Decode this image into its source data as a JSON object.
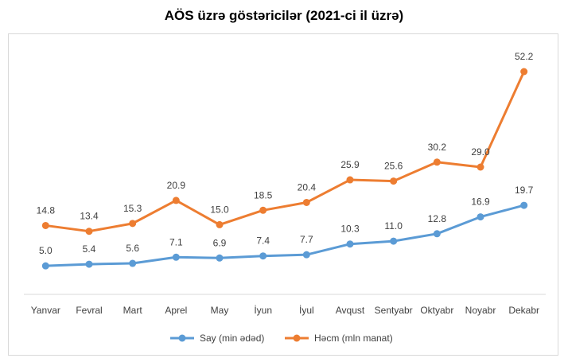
{
  "chart_data": {
    "type": "line",
    "title": "AÖS üzrə göstəricilər (2021-ci il üzrə)",
    "categories": [
      "Yanvar",
      "Fevral",
      "Mart",
      "Aprel",
      "May",
      "İyun",
      "İyul",
      "Avqust",
      "Sentyabr",
      "Oktyabr",
      "Noyabr",
      "Dekabr"
    ],
    "series": [
      {
        "name": "Say (min ədəd)",
        "color": "#5b9bd5",
        "values": [
          5.0,
          5.4,
          5.6,
          7.1,
          6.9,
          7.4,
          7.7,
          10.3,
          11.0,
          12.8,
          16.9,
          19.7
        ]
      },
      {
        "name": "Həcm (mln manat)",
        "color": "#ed7d31",
        "values": [
          14.8,
          13.4,
          15.3,
          20.9,
          15.0,
          18.5,
          20.4,
          25.9,
          25.6,
          30.2,
          29.0,
          52.2
        ]
      }
    ],
    "xlabel": "",
    "ylabel": "",
    "grid": false,
    "legend_position": "bottom"
  }
}
